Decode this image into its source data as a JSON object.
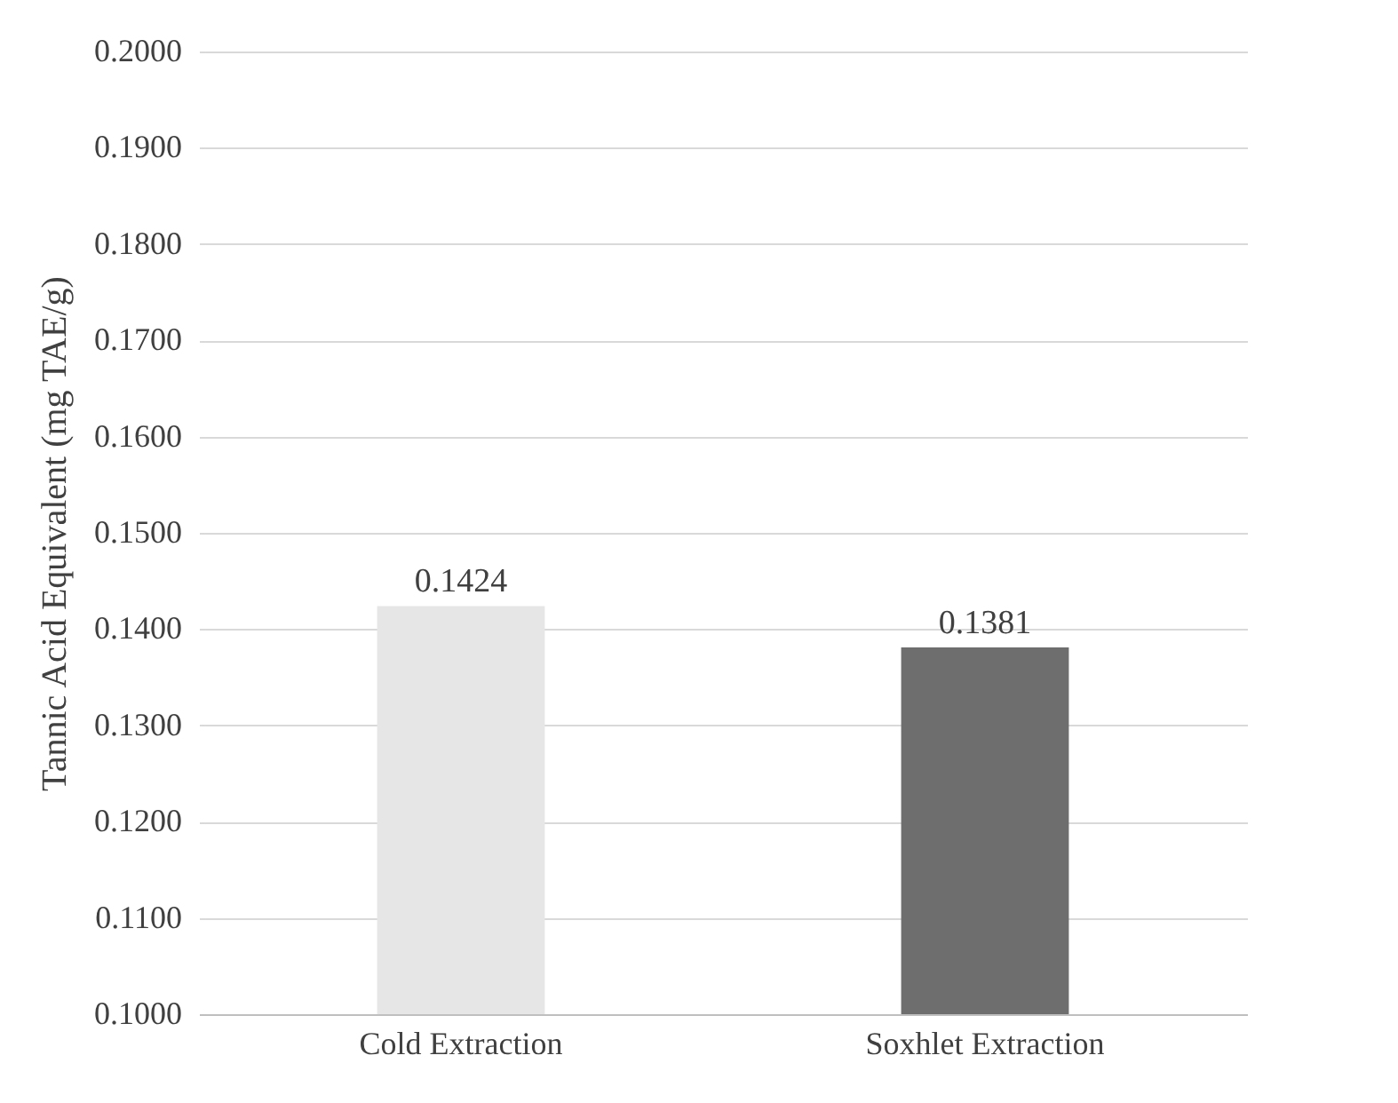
{
  "chart_data": {
    "type": "bar",
    "ylabel": "Tannic Acid Equivalent (mg TAE/g)",
    "categories": [
      "Cold Extraction",
      "Soxhlet Extraction"
    ],
    "values": [
      0.1424,
      0.1381
    ],
    "colors": [
      "#e6e6e6",
      "#6e6e6e"
    ],
    "ylim": [
      0.1,
      0.2
    ],
    "yticks": [
      {
        "value": 0.1,
        "label": "0.1000"
      },
      {
        "value": 0.11,
        "label": "0.1100"
      },
      {
        "value": 0.12,
        "label": "0.1200"
      },
      {
        "value": 0.13,
        "label": "0.1300"
      },
      {
        "value": 0.14,
        "label": "0.1400"
      },
      {
        "value": 0.15,
        "label": "0.1500"
      },
      {
        "value": 0.16,
        "label": "0.1600"
      },
      {
        "value": 0.17,
        "label": "0.1700"
      },
      {
        "value": 0.18,
        "label": "0.1800"
      },
      {
        "value": 0.19,
        "label": "0.1900"
      },
      {
        "value": 0.2,
        "label": "0.2000"
      }
    ],
    "grid": "y",
    "data_labels": true
  }
}
